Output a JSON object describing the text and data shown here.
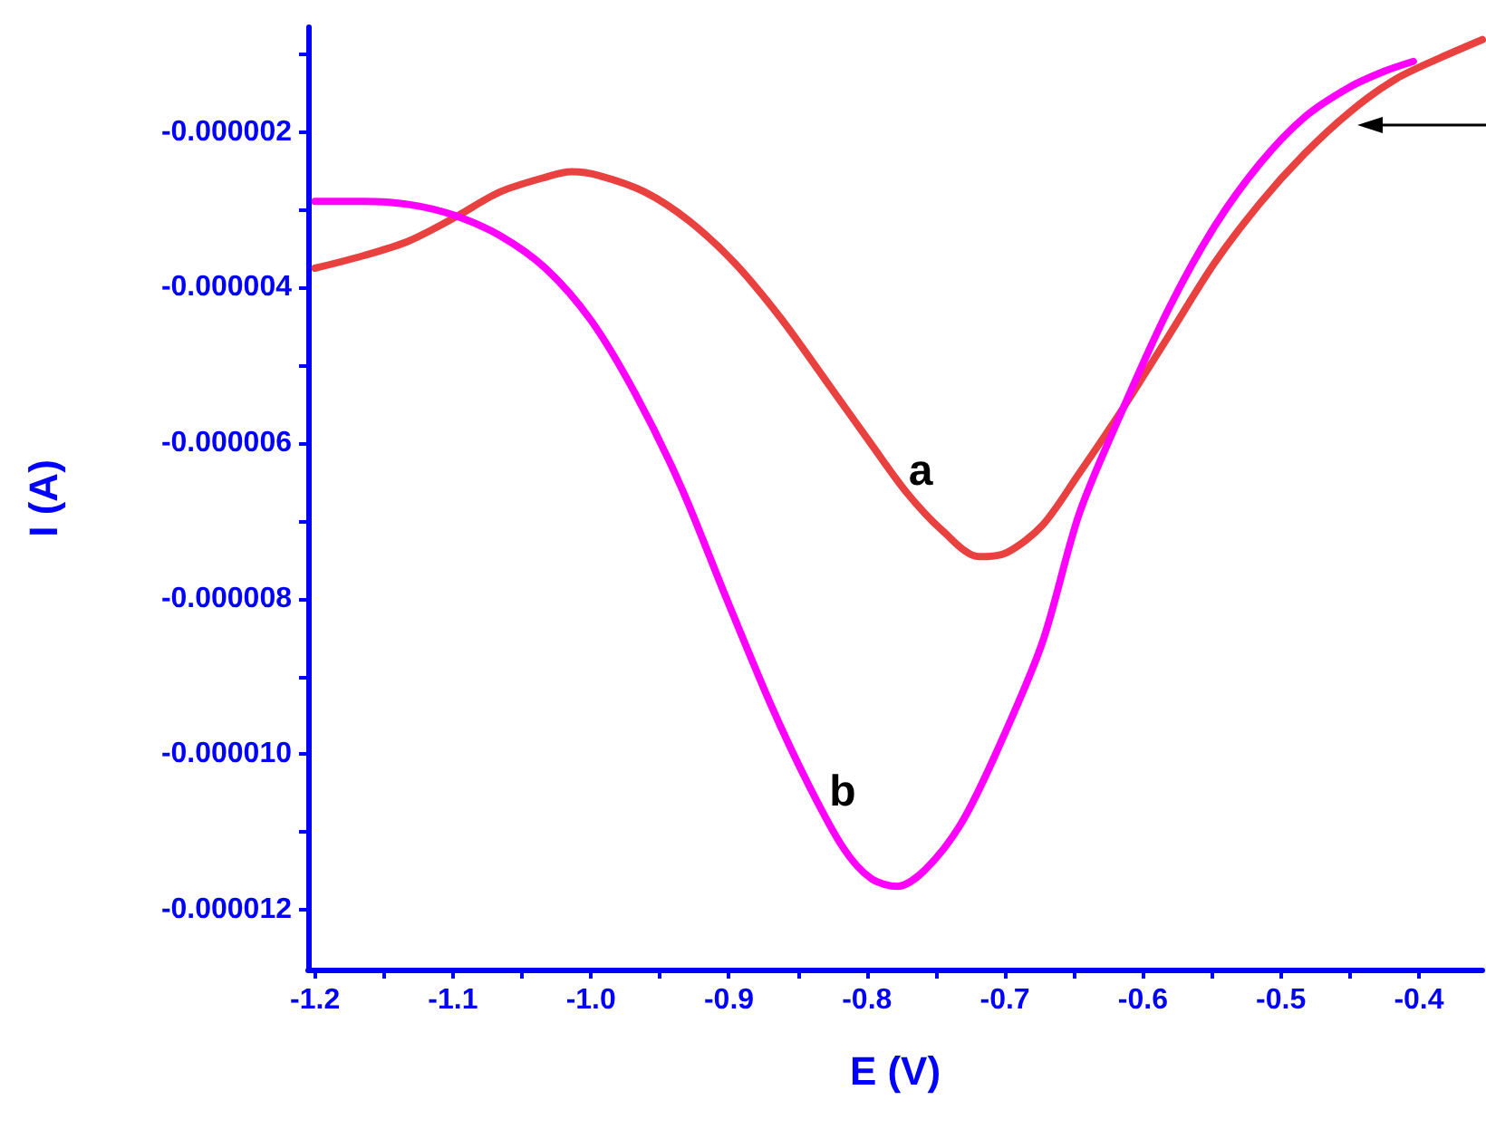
{
  "chart_data": {
    "type": "line",
    "xlabel": "E (V)",
    "ylabel": "I (A)",
    "xlim": [
      -1.205,
      -0.354
    ],
    "ylim": [
      -1.277e-05,
      -6.5e-07
    ],
    "xticks": [
      {
        "value": -1.2,
        "label": "-1.2"
      },
      {
        "value": -1.15,
        "label": null
      },
      {
        "value": -1.1,
        "label": "-1.1"
      },
      {
        "value": -1.05,
        "label": null
      },
      {
        "value": -1.0,
        "label": "-1.0"
      },
      {
        "value": -0.95,
        "label": null
      },
      {
        "value": -0.9,
        "label": "-0.9"
      },
      {
        "value": -0.85,
        "label": null
      },
      {
        "value": -0.8,
        "label": "-0.8"
      },
      {
        "value": -0.75,
        "label": null
      },
      {
        "value": -0.7,
        "label": "-0.7"
      },
      {
        "value": -0.65,
        "label": null
      },
      {
        "value": -0.6,
        "label": "-0.6"
      },
      {
        "value": -0.55,
        "label": null
      },
      {
        "value": -0.5,
        "label": "-0.5"
      },
      {
        "value": -0.45,
        "label": null
      },
      {
        "value": -0.4,
        "label": "-0.4"
      }
    ],
    "yticks": [
      {
        "value": -1e-06,
        "label": null
      },
      {
        "value": -2e-06,
        "label": "-0.000002"
      },
      {
        "value": -3e-06,
        "label": null
      },
      {
        "value": -4e-06,
        "label": "-0.000004"
      },
      {
        "value": -5e-06,
        "label": null
      },
      {
        "value": -6e-06,
        "label": "-0.000006"
      },
      {
        "value": -7e-06,
        "label": null
      },
      {
        "value": -8e-06,
        "label": "-0.000008"
      },
      {
        "value": -9e-06,
        "label": null
      },
      {
        "value": -1e-05,
        "label": "-0.000010"
      },
      {
        "value": -1.1e-05,
        "label": null
      },
      {
        "value": -1.2e-05,
        "label": "-0.000012"
      }
    ],
    "grid": false,
    "marker": "none",
    "line_style": "solid",
    "annotations": [
      "a",
      "b"
    ],
    "series": [
      {
        "color": "#e8413f",
        "x": [
          -1.2,
          -1.165,
          -1.132,
          -1.099,
          -1.066,
          -1.033,
          -1.014,
          -0.994,
          -0.961,
          -0.929,
          -0.896,
          -0.863,
          -0.83,
          -0.797,
          -0.771,
          -0.745,
          -0.719,
          -0.699,
          -0.673,
          -0.647,
          -0.614,
          -0.581,
          -0.548,
          -0.515,
          -0.483,
          -0.45,
          -0.417,
          -0.384,
          -0.354
        ],
        "values": [
          -3.75e-06,
          -3.59e-06,
          -3.4e-06,
          -3.1e-06,
          -2.77e-06,
          -2.58e-06,
          -2.51e-06,
          -2.56e-06,
          -2.77e-06,
          -3.14e-06,
          -3.68e-06,
          -4.38e-06,
          -5.19e-06,
          -6.01e-06,
          -6.64e-06,
          -7.13e-06,
          -7.46e-06,
          -7.41e-06,
          -7.06e-06,
          -6.41e-06,
          -5.54e-06,
          -4.61e-06,
          -3.68e-06,
          -2.91e-06,
          -2.28e-06,
          -1.74e-06,
          -1.32e-06,
          -1.04e-06,
          -8.1e-07
        ]
      },
      {
        "color": "#ff00ff",
        "x": [
          -1.2,
          -1.165,
          -1.132,
          -1.099,
          -1.066,
          -1.033,
          -1.0,
          -0.968,
          -0.935,
          -0.902,
          -0.869,
          -0.843,
          -0.817,
          -0.797,
          -0.778,
          -0.758,
          -0.732,
          -0.706,
          -0.673,
          -0.646,
          -0.614,
          -0.581,
          -0.548,
          -0.515,
          -0.483,
          -0.45,
          -0.424,
          -0.404
        ],
        "values": [
          -2.89e-06,
          -2.89e-06,
          -2.93e-06,
          -3.07e-06,
          -3.33e-06,
          -3.75e-06,
          -4.42e-06,
          -5.36e-06,
          -6.55e-06,
          -7.99e-06,
          -9.39e-06,
          -1.037e-05,
          -1.121e-05,
          -1.16e-05,
          -1.17e-05,
          -1.149e-05,
          -1.09e-05,
          -9.97e-06,
          -8.57e-06,
          -6.9e-06,
          -5.54e-06,
          -4.26e-06,
          -3.21e-06,
          -2.4e-06,
          -1.81e-06,
          -1.42e-06,
          -1.21e-06,
          -1.09e-06
        ]
      }
    ]
  }
}
